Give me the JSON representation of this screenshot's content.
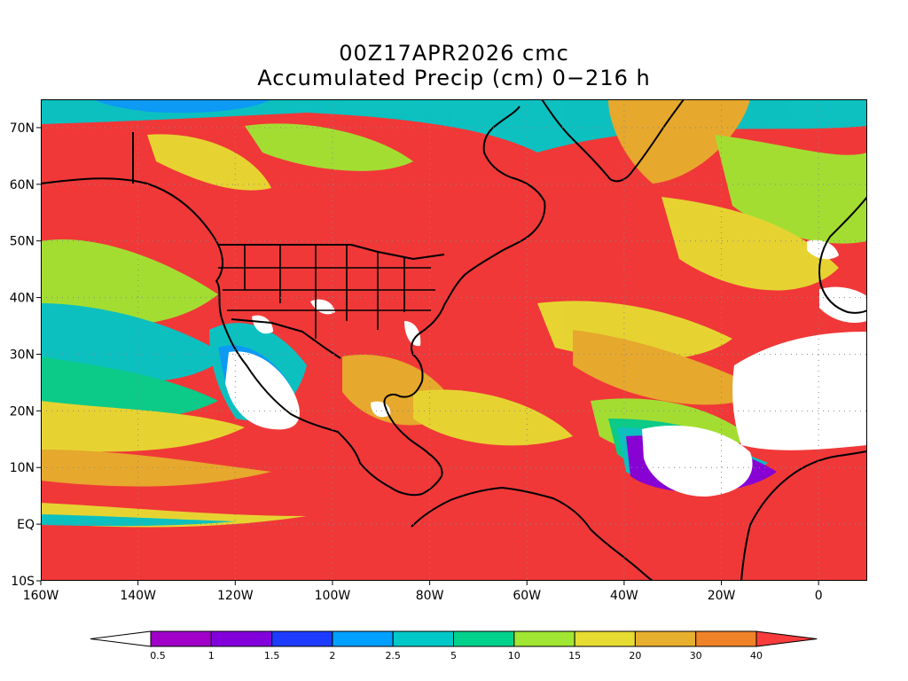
{
  "title": {
    "line1": "00Z17APR2026 cmc",
    "line2": "Accumulated Precip (cm) 0−216 h"
  },
  "map": {
    "lon_range": [
      -160,
      10
    ],
    "lat_range": [
      -10,
      75
    ],
    "grid": true,
    "ocean_fill_color": "#f03838",
    "y_ticks": [
      {
        "value": 70,
        "label": "70N"
      },
      {
        "value": 60,
        "label": "60N"
      },
      {
        "value": 50,
        "label": "50N"
      },
      {
        "value": 40,
        "label": "40N"
      },
      {
        "value": 30,
        "label": "30N"
      },
      {
        "value": 20,
        "label": "20N"
      },
      {
        "value": 10,
        "label": "10N"
      },
      {
        "value": 0,
        "label": "EQ"
      },
      {
        "value": -10,
        "label": "10S"
      }
    ],
    "x_ticks": [
      {
        "value": -160,
        "label": "160W"
      },
      {
        "value": -140,
        "label": "140W"
      },
      {
        "value": -120,
        "label": "120W"
      },
      {
        "value": -100,
        "label": "100W"
      },
      {
        "value": -80,
        "label": "80W"
      },
      {
        "value": -60,
        "label": "60W"
      },
      {
        "value": -40,
        "label": "40W"
      },
      {
        "value": -20,
        "label": "20W"
      },
      {
        "value": 0,
        "label": "0"
      }
    ]
  },
  "colorbar": {
    "below_color": "#ffffff",
    "colors": [
      "#a000c8",
      "#8200dc",
      "#1e3cff",
      "#00a0ff",
      "#00c8c8",
      "#00d28c",
      "#a0e632",
      "#e6dc32",
      "#e6af2d",
      "#f08228",
      "#fa3c3c"
    ],
    "labels": [
      "0.5",
      "1",
      "1.5",
      "2",
      "2.5",
      "5",
      "10",
      "15",
      "20",
      "30",
      "40"
    ]
  }
}
